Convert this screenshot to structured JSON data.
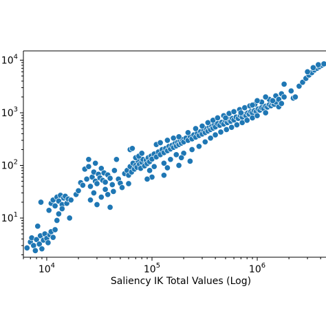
{
  "chart_data": {
    "type": "scatter",
    "title": "",
    "xlabel": "Saliency IK Total Values (Log)",
    "ylabel": "",
    "x_scale": "log",
    "y_scale": "log",
    "xlim": [
      6000,
      4500000
    ],
    "ylim": [
      1.8,
      15000
    ],
    "grid": false,
    "legend": "none",
    "marker_color": "#1f77b4",
    "x_ticks": [
      {
        "value": 10000,
        "base": "10",
        "exp": "4"
      },
      {
        "value": 100000,
        "base": "10",
        "exp": "5"
      },
      {
        "value": 1000000,
        "base": "10",
        "exp": "6"
      }
    ],
    "y_ticks": [
      {
        "value": 10,
        "base": "10",
        "exp": "1"
      },
      {
        "value": 100,
        "base": "10",
        "exp": "2"
      },
      {
        "value": 1000,
        "base": "10",
        "exp": "3"
      },
      {
        "value": 10000,
        "base": "10",
        "exp": "4"
      }
    ],
    "points": [
      [
        6500,
        2.7
      ],
      [
        7000,
        3.5
      ],
      [
        7200,
        4.2
      ],
      [
        7500,
        3.0
      ],
      [
        7800,
        2.4
      ],
      [
        8000,
        3.9
      ],
      [
        8200,
        7.0
      ],
      [
        8500,
        3.2
      ],
      [
        8700,
        4.6
      ],
      [
        9000,
        2.6
      ],
      [
        9300,
        3.8
      ],
      [
        9600,
        5.0
      ],
      [
        10000,
        4.1
      ],
      [
        10300,
        3.4
      ],
      [
        10700,
        4.8
      ],
      [
        11000,
        5.5
      ],
      [
        11500,
        4.3
      ],
      [
        12000,
        6.0
      ],
      [
        8800,
        20
      ],
      [
        10500,
        14
      ],
      [
        11000,
        19
      ],
      [
        11500,
        22
      ],
      [
        12000,
        17
      ],
      [
        12500,
        25
      ],
      [
        13000,
        21
      ],
      [
        13500,
        27
      ],
      [
        14000,
        18
      ],
      [
        14500,
        24
      ],
      [
        15000,
        26
      ],
      [
        15500,
        19
      ],
      [
        16000,
        23
      ],
      [
        17000,
        22
      ],
      [
        13000,
        12
      ],
      [
        14000,
        15
      ],
      [
        12500,
        9
      ],
      [
        16500,
        10
      ],
      [
        19000,
        28
      ],
      [
        20000,
        33
      ],
      [
        21000,
        47
      ],
      [
        22000,
        42
      ],
      [
        23000,
        85
      ],
      [
        24000,
        55
      ],
      [
        25000,
        95
      ],
      [
        26000,
        40
      ],
      [
        27000,
        60
      ],
      [
        28000,
        75
      ],
      [
        29000,
        50
      ],
      [
        30000,
        45
      ],
      [
        31000,
        68
      ],
      [
        32000,
        58
      ],
      [
        33000,
        88
      ],
      [
        34000,
        52
      ],
      [
        35000,
        72
      ],
      [
        36000,
        48
      ],
      [
        38000,
        66
      ],
      [
        40000,
        57
      ],
      [
        42000,
        43
      ],
      [
        44000,
        80
      ],
      [
        46000,
        130
      ],
      [
        48000,
        55
      ],
      [
        50000,
        46
      ],
      [
        52000,
        38
      ],
      [
        26000,
        22
      ],
      [
        28000,
        30
      ],
      [
        30000,
        18
      ],
      [
        33000,
        25
      ],
      [
        36000,
        35
      ],
      [
        38000,
        28
      ],
      [
        40000,
        16
      ],
      [
        43000,
        32
      ],
      [
        25000,
        130
      ],
      [
        29000,
        110
      ],
      [
        55000,
        70
      ],
      [
        58000,
        80
      ],
      [
        60000,
        65
      ],
      [
        62000,
        95
      ],
      [
        64000,
        75
      ],
      [
        66000,
        110
      ],
      [
        68000,
        85
      ],
      [
        70000,
        100
      ],
      [
        72000,
        92
      ],
      [
        74000,
        120
      ],
      [
        76000,
        105
      ],
      [
        78000,
        88
      ],
      [
        80000,
        115
      ],
      [
        82000,
        130
      ],
      [
        85000,
        98
      ],
      [
        88000,
        125
      ],
      [
        90000,
        108
      ],
      [
        92000,
        140
      ],
      [
        95000,
        118
      ],
      [
        98000,
        150
      ],
      [
        100000,
        132
      ],
      [
        105000,
        165
      ],
      [
        110000,
        145
      ],
      [
        115000,
        180
      ],
      [
        120000,
        160
      ],
      [
        125000,
        200
      ],
      [
        130000,
        175
      ],
      [
        135000,
        210
      ],
      [
        140000,
        190
      ],
      [
        145000,
        230
      ],
      [
        150000,
        205
      ],
      [
        155000,
        240
      ],
      [
        160000,
        220
      ],
      [
        165000,
        260
      ],
      [
        170000,
        235
      ],
      [
        175000,
        275
      ],
      [
        180000,
        250
      ],
      [
        185000,
        290
      ],
      [
        190000,
        265
      ],
      [
        195000,
        310
      ],
      [
        200000,
        280
      ],
      [
        210000,
        330
      ],
      [
        220000,
        300
      ],
      [
        230000,
        360
      ],
      [
        240000,
        320
      ],
      [
        250000,
        380
      ],
      [
        260000,
        345
      ],
      [
        270000,
        410
      ],
      [
        280000,
        370
      ],
      [
        290000,
        440
      ],
      [
        300000,
        395
      ],
      [
        310000,
        470
      ],
      [
        320000,
        420
      ],
      [
        330000,
        500
      ],
      [
        340000,
        450
      ],
      [
        350000,
        530
      ],
      [
        360000,
        480
      ],
      [
        370000,
        560
      ],
      [
        380000,
        510
      ],
      [
        390000,
        590
      ],
      [
        400000,
        540
      ],
      [
        420000,
        620
      ],
      [
        440000,
        580
      ],
      [
        460000,
        660
      ],
      [
        480000,
        610
      ],
      [
        500000,
        700
      ],
      [
        520000,
        650
      ],
      [
        540000,
        740
      ],
      [
        560000,
        690
      ],
      [
        580000,
        780
      ],
      [
        600000,
        730
      ],
      [
        630000,
        830
      ],
      [
        660000,
        780
      ],
      [
        690000,
        880
      ],
      [
        720000,
        830
      ],
      [
        750000,
        930
      ],
      [
        780000,
        880
      ],
      [
        810000,
        990
      ],
      [
        840000,
        940
      ],
      [
        870000,
        1050
      ],
      [
        900000,
        1000
      ],
      [
        940000,
        1100
      ],
      [
        980000,
        1060
      ],
      [
        1020000,
        1180
      ],
      [
        1060000,
        1120
      ],
      [
        1100000,
        1250
      ],
      [
        1150000,
        1200
      ],
      [
        1200000,
        1330
      ],
      [
        1250000,
        1280
      ],
      [
        1300000,
        1420
      ],
      [
        1350000,
        1360
      ],
      [
        1400000,
        1500
      ],
      [
        1450000,
        1450
      ],
      [
        1500000,
        1600
      ],
      [
        62000,
        200
      ],
      [
        65000,
        210
      ],
      [
        70000,
        140
      ],
      [
        75000,
        150
      ],
      [
        80000,
        170
      ],
      [
        95000,
        80
      ],
      [
        105000,
        95
      ],
      [
        110000,
        250
      ],
      [
        120000,
        270
      ],
      [
        130000,
        110
      ],
      [
        140000,
        300
      ],
      [
        150000,
        130
      ],
      [
        160000,
        330
      ],
      [
        170000,
        160
      ],
      [
        180000,
        350
      ],
      [
        200000,
        170
      ],
      [
        220000,
        420
      ],
      [
        240000,
        200
      ],
      [
        260000,
        500
      ],
      [
        280000,
        230
      ],
      [
        300000,
        560
      ],
      [
        320000,
        280
      ],
      [
        340000,
        650
      ],
      [
        360000,
        330
      ],
      [
        380000,
        720
      ],
      [
        400000,
        380
      ],
      [
        420000,
        800
      ],
      [
        450000,
        430
      ],
      [
        480000,
        880
      ],
      [
        510000,
        480
      ],
      [
        540000,
        970
      ],
      [
        570000,
        530
      ],
      [
        600000,
        1050
      ],
      [
        640000,
        590
      ],
      [
        680000,
        1150
      ],
      [
        720000,
        650
      ],
      [
        760000,
        1250
      ],
      [
        800000,
        720
      ],
      [
        850000,
        1350
      ],
      [
        900000,
        800
      ],
      [
        950000,
        1450
      ],
      [
        1000000,
        880
      ],
      [
        1100000,
        1600
      ],
      [
        1200000,
        1000
      ],
      [
        1300000,
        1800
      ],
      [
        1400000,
        1700
      ],
      [
        1500000,
        2100
      ],
      [
        1600000,
        1800
      ],
      [
        1700000,
        2300
      ],
      [
        1800000,
        2000
      ],
      [
        2100000,
        2600
      ],
      [
        2200000,
        1900
      ],
      [
        2300000,
        2000
      ],
      [
        2500000,
        3200
      ],
      [
        2700000,
        3800
      ],
      [
        2900000,
        4500
      ],
      [
        3100000,
        5200
      ],
      [
        3300000,
        5800
      ],
      [
        3500000,
        6500
      ],
      [
        3700000,
        7000
      ],
      [
        3900000,
        7500
      ],
      [
        4100000,
        8000
      ],
      [
        4300000,
        8500
      ],
      [
        3000000,
        6000
      ],
      [
        3400000,
        7200
      ],
      [
        3800000,
        8200
      ],
      [
        1600000,
        1300
      ],
      [
        1700000,
        1500
      ],
      [
        1800000,
        3500
      ],
      [
        1200000,
        2000
      ],
      [
        1000000,
        1700
      ],
      [
        900000,
        1400
      ],
      [
        700000,
        1000
      ],
      [
        500000,
        800
      ],
      [
        230000,
        120
      ],
      [
        180000,
        100
      ],
      [
        190000,
        140
      ],
      [
        130000,
        65
      ],
      [
        140000,
        90
      ],
      [
        100000,
        60
      ],
      [
        90000,
        55
      ],
      [
        60000,
        45
      ]
    ]
  }
}
